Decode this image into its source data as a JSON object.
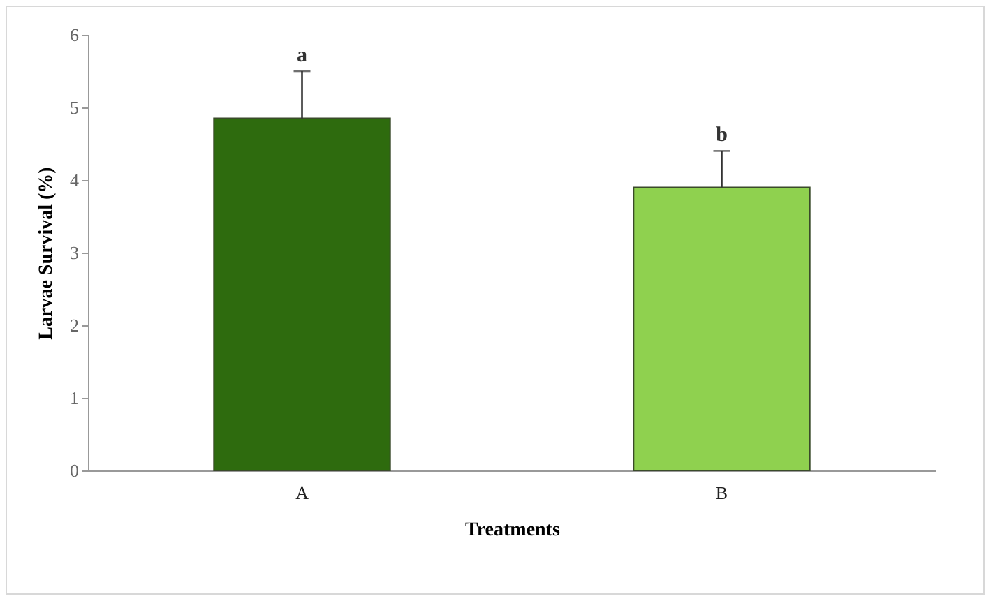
{
  "chart_data": {
    "type": "bar",
    "xlabel": "Treatments",
    "ylabel": "Larvae Survival (%)",
    "categories": [
      "A",
      "B"
    ],
    "values": [
      4.85,
      3.9
    ],
    "colors": [
      "#2e6b0e",
      "#8fd14f"
    ],
    "errors": [
      [
        4.85,
        5.5
      ],
      [
        3.9,
        4.4
      ]
    ],
    "ylim": [
      0,
      6
    ],
    "yticks": [
      0,
      1,
      2,
      3,
      4,
      5,
      6
    ],
    "annotations": [
      "a",
      "b"
    ]
  }
}
